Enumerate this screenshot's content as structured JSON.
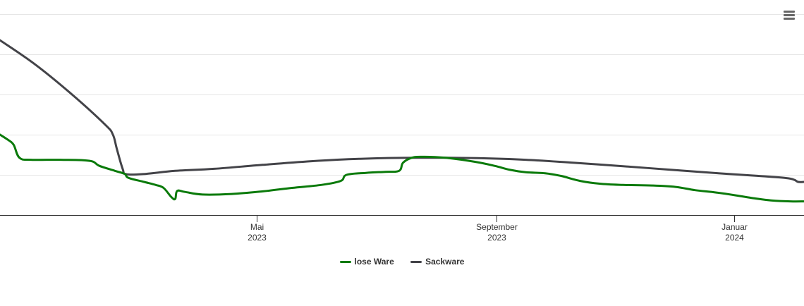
{
  "chart_data": {
    "type": "line",
    "title": "",
    "xlabel": "",
    "ylabel": "",
    "x_type": "datetime",
    "x_range": [
      "2022-12-20",
      "2024-02-06"
    ],
    "x_ticks": [
      {
        "date": "2023-05-01",
        "label": "Mai",
        "year": "2023"
      },
      {
        "date": "2023-09-01",
        "label": "September",
        "year": "2023"
      },
      {
        "date": "2024-01-01",
        "label": "Januar",
        "year": "2024"
      }
    ],
    "y_range": [
      0,
      100
    ],
    "y_gridlines": [
      0,
      20,
      40,
      60,
      80,
      100
    ],
    "y_tick_labels_shown": false,
    "grid": true,
    "legend_position": "bottom-center",
    "series": [
      {
        "name": "lose Ware",
        "color": "#0a7a0a",
        "points": [
          [
            "2022-12-20",
            40
          ],
          [
            "2022-12-24",
            37.5
          ],
          [
            "2022-12-27",
            35
          ],
          [
            "2022-12-30",
            28.5
          ],
          [
            "2023-01-05",
            27.5
          ],
          [
            "2023-01-20",
            27.5
          ],
          [
            "2023-02-04",
            27
          ],
          [
            "2023-02-09",
            24.5
          ],
          [
            "2023-02-17",
            22
          ],
          [
            "2023-02-22",
            20.5
          ],
          [
            "2023-02-24",
            18.5
          ],
          [
            "2023-03-04",
            16.5
          ],
          [
            "2023-03-10",
            15
          ],
          [
            "2023-03-14",
            13.5
          ],
          [
            "2023-03-18",
            9
          ],
          [
            "2023-03-20",
            8
          ],
          [
            "2023-03-21",
            12
          ],
          [
            "2023-03-25",
            11.5
          ],
          [
            "2023-04-03",
            10.2
          ],
          [
            "2023-04-18",
            10.5
          ],
          [
            "2023-05-04",
            11.8
          ],
          [
            "2023-05-19",
            13.5
          ],
          [
            "2023-06-03",
            15
          ],
          [
            "2023-06-13",
            17
          ],
          [
            "2023-06-16",
            20
          ],
          [
            "2023-06-26",
            21
          ],
          [
            "2023-07-06",
            21.5
          ],
          [
            "2023-07-13",
            22
          ],
          [
            "2023-07-15",
            26
          ],
          [
            "2023-07-19",
            28.3
          ],
          [
            "2023-07-24",
            29
          ],
          [
            "2023-08-06",
            28.5
          ],
          [
            "2023-08-21",
            26.5
          ],
          [
            "2023-08-31",
            24.5
          ],
          [
            "2023-09-08",
            22.5
          ],
          [
            "2023-09-16",
            21.3
          ],
          [
            "2023-09-26",
            20.8
          ],
          [
            "2023-10-04",
            19.5
          ],
          [
            "2023-10-14",
            17
          ],
          [
            "2023-10-24",
            15.6
          ],
          [
            "2023-11-05",
            15
          ],
          [
            "2023-11-20",
            14.7
          ],
          [
            "2023-12-02",
            14
          ],
          [
            "2023-12-12",
            12.4
          ],
          [
            "2023-12-23",
            11.2
          ],
          [
            "2024-01-02",
            9.8
          ],
          [
            "2024-01-11",
            8.4
          ],
          [
            "2024-01-20",
            7.3
          ],
          [
            "2024-01-30",
            6.8
          ],
          [
            "2024-02-06",
            6.8
          ]
        ]
      },
      {
        "name": "Sackware",
        "color": "#434348",
        "points": [
          [
            "2022-12-20",
            87
          ],
          [
            "2023-01-07",
            75
          ],
          [
            "2023-01-26",
            60
          ],
          [
            "2023-02-12",
            45
          ],
          [
            "2023-02-16",
            40
          ],
          [
            "2023-02-18",
            33
          ],
          [
            "2023-02-21",
            23
          ],
          [
            "2023-02-23",
            20.3
          ],
          [
            "2023-03-05",
            20.5
          ],
          [
            "2023-03-20",
            22
          ],
          [
            "2023-04-09",
            23
          ],
          [
            "2023-05-04",
            25
          ],
          [
            "2023-05-29",
            26.8
          ],
          [
            "2023-06-23",
            28
          ],
          [
            "2023-07-23",
            28.5
          ],
          [
            "2023-08-22",
            28.3
          ],
          [
            "2023-09-16",
            27.5
          ],
          [
            "2023-10-11",
            26
          ],
          [
            "2023-11-05",
            24.3
          ],
          [
            "2023-11-30",
            22.5
          ],
          [
            "2023-12-24",
            20.8
          ],
          [
            "2024-01-13",
            19.5
          ],
          [
            "2024-01-28",
            18.4
          ],
          [
            "2024-02-01",
            17.5
          ],
          [
            "2024-02-03",
            16.5
          ],
          [
            "2024-02-06",
            16.5
          ]
        ]
      }
    ]
  },
  "menu": {
    "icon": "hamburger-menu-icon"
  }
}
